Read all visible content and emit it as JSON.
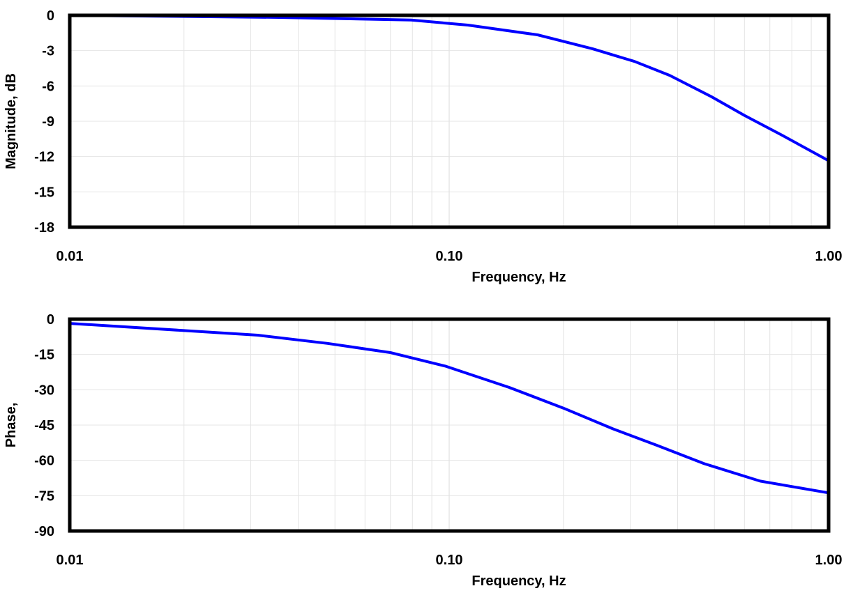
{
  "chart_data": [
    {
      "type": "line",
      "xlabel": "Frequency, Hz",
      "ylabel": "Magnitude, dB",
      "xscale": "log",
      "xlim": [
        0.01,
        1.0
      ],
      "ylim": [
        -18,
        0
      ],
      "xticks": [
        "0.01",
        "0.10",
        "1.00"
      ],
      "yticks": [
        "0",
        "-3",
        "-6",
        "-9",
        "-12",
        "-15",
        "-18"
      ],
      "grid": true,
      "line_color": "#0000ff",
      "series": [
        {
          "x": [
            0.01,
            0.0356,
            0.0794,
            0.112,
            0.171,
            0.239,
            0.308,
            0.381,
            0.49,
            0.6,
            0.75,
            1.0
          ],
          "y": [
            0,
            -0.18,
            -0.4,
            -0.83,
            -1.66,
            -2.85,
            -3.92,
            -5.1,
            -6.9,
            -8.5,
            -10.15,
            -12.35
          ]
        }
      ]
    },
    {
      "type": "line",
      "xlabel": "Frequency, Hz",
      "ylabel": "Phase,",
      "xscale": "log",
      "xlim": [
        0.01,
        1.0
      ],
      "ylim": [
        -90,
        0
      ],
      "xticks": [
        "0.01",
        "0.10",
        "1.00"
      ],
      "yticks": [
        "0",
        "-15",
        "-30",
        "-45",
        "-60",
        "-75",
        "-90"
      ],
      "grid": true,
      "line_color": "#0000ff",
      "series": [
        {
          "x": [
            0.01,
            0.0313,
            0.0478,
            0.07,
            0.098,
            0.144,
            0.2,
            0.27,
            0.35,
            0.47,
            0.66,
            1.0
          ],
          "y": [
            -1.8,
            -6.8,
            -10.3,
            -14.2,
            -20,
            -29,
            -37.8,
            -46.6,
            -53.4,
            -61.4,
            -68.8,
            -73.8
          ]
        }
      ]
    }
  ]
}
